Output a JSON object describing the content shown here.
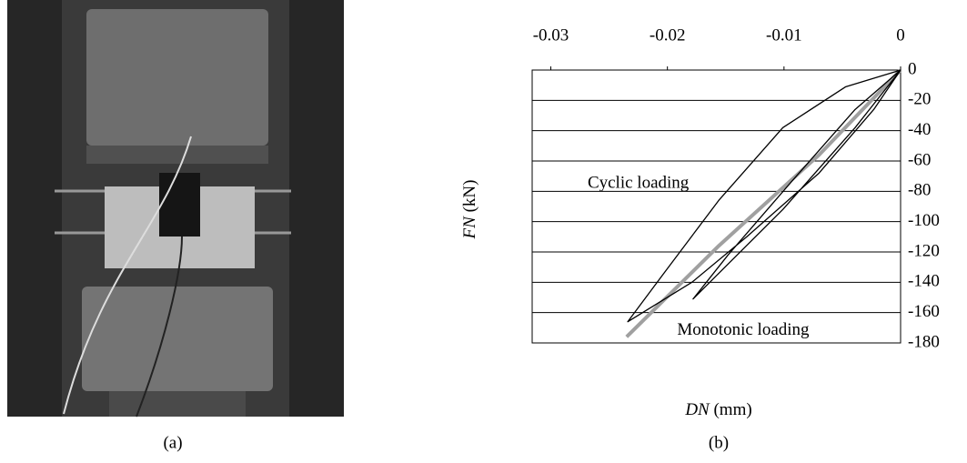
{
  "photo_caption": "(a)",
  "chart_data": {
    "type": "line",
    "caption": "(b)",
    "xlabel": [
      "DN",
      "(mm)"
    ],
    "ylabel": [
      "FN",
      "(kN)"
    ],
    "xlim": [
      -0.0316,
      0
    ],
    "xticks": [
      -0.03,
      -0.02,
      -0.01,
      0
    ],
    "ylim": [
      -180,
      0
    ],
    "yticks": [
      0,
      -20,
      -40,
      -60,
      -80,
      -100,
      -120,
      -140,
      -160,
      -180
    ],
    "grid": true,
    "annotations": [
      {
        "text": "Cyclic loading",
        "x": -0.0225,
        "y": -75
      },
      {
        "text": "Monotonic loading",
        "x": -0.0135,
        "y": -172
      }
    ],
    "series": [
      {
        "name": "Cyclic loading",
        "color": "#000000",
        "width": 1.3,
        "x": [
          0,
          -0.0023,
          -0.007,
          -0.0132,
          -0.0179,
          -0.0234,
          -0.0203,
          -0.0156,
          -0.0101,
          -0.0047,
          -0.0004,
          0,
          -0.0039,
          -0.0101,
          -0.0148,
          -0.0178,
          -0.0148,
          -0.0094,
          -0.0039,
          0
        ],
        "values": [
          0,
          -26,
          -68,
          -110,
          -140,
          -166,
          -134,
          -86,
          -38,
          -11,
          -1,
          0,
          -38,
          -92,
          -128,
          -151,
          -122,
          -74,
          -26,
          0
        ]
      },
      {
        "name": "Monotonic loading",
        "color": "#a0a0a0",
        "width": 4,
        "x": [
          0,
          -0.007,
          -0.0156,
          -0.0235
        ],
        "values": [
          0,
          -56,
          -116,
          -176
        ]
      }
    ]
  }
}
